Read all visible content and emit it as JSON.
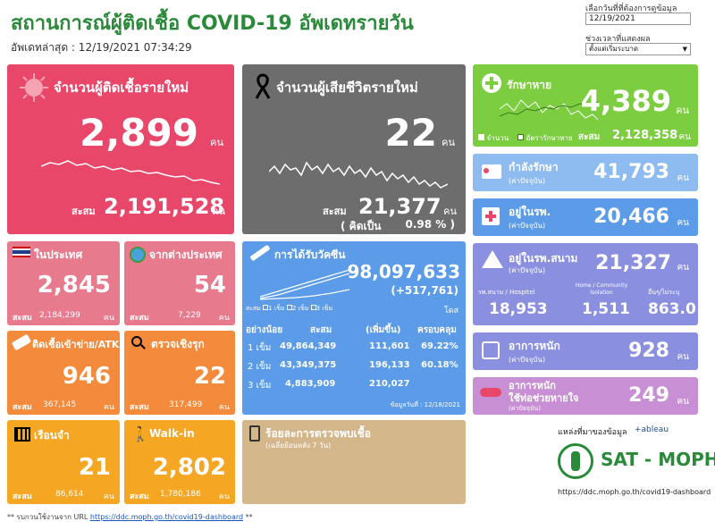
{
  "header": {
    "title": "สถานการณ์ผู้ติดเชื้อ COVID-19 อัพเดทรายวัน",
    "updated_label": "อัพเดทล่าสุด : 12/19/2021 07:34:29",
    "date_filter_label": "เลือกวันที่ที่ต้องการดูข้อมูล",
    "date_value": "12/19/2021",
    "period_label": "ช่วงเวลาที่แสดงผล",
    "period_value": "ตั้งแต่เริ่มระบาด"
  },
  "new_cases": {
    "title": "จำนวนผู้ติดเชื้อรายใหม่",
    "value": "2,899",
    "unit": "คน",
    "total_label": "สะสม",
    "total": "2,191,528",
    "total_unit": "คน"
  },
  "deaths": {
    "title": "จำนวนผู้เสียชีวิตรายใหม่",
    "value": "22",
    "unit": "คน",
    "total_label": "สะสม",
    "total": "21,377",
    "total_unit": "คน",
    "pct_label": "( คิดเป็น",
    "pct_value": "0.98 % )"
  },
  "recovered": {
    "title": "รักษาหาย",
    "value": "4,389",
    "unit": "คน",
    "legend1": "จำนวน",
    "legend2": "อัตรารักษาหาย",
    "total_label": "สะสม",
    "total": "2,128,358",
    "total_unit": "คน"
  },
  "treating": {
    "title": "กำลังรักษา",
    "sub": "(ค่าปัจจุบัน)",
    "value": "41,793",
    "unit": "คน"
  },
  "hospital": {
    "title": "อยู่ในรพ.",
    "sub": "(ค่าปัจจุบัน)",
    "value": "20,466",
    "unit": "คน"
  },
  "field_hospital": {
    "title": "อยู่ในรพ.สนาม",
    "sub": "(ค่าปัจจุบัน)",
    "value": "21,327",
    "unit": "คน",
    "col1_label": "รพ.สนาม / Hospitel",
    "col1_value": "18,953",
    "col2_label": "Home / Community Isolation",
    "col2_value": "1,511",
    "col3_label": "อื่นๆ/ไม่ระบุ",
    "col3_value": "863.0"
  },
  "severe": {
    "title": "อาการหนัก",
    "sub": "(ค่าปัจจุบัน)",
    "value": "928",
    "unit": "คน"
  },
  "ventilator": {
    "title1": "อาการหนัก",
    "title2": "ใช้ท่อช่วยหายใจ",
    "sub": "(ค่าปัจจุบัน)",
    "value": "249",
    "unit": "คน"
  },
  "domestic": {
    "title": "ในประเทศ",
    "value": "2,845",
    "total_label": "สะสม",
    "total": "2,184,299",
    "total_unit": "คน"
  },
  "imported": {
    "title": "จากต่างประเทศ",
    "value": "54",
    "total_label": "สะสม",
    "total": "7,229",
    "total_unit": "คน"
  },
  "atk": {
    "title": "ติดเชื้อเข้าข่าย/ATK",
    "value": "946",
    "total_label": "สะสม",
    "total": "367,145",
    "total_unit": "คน"
  },
  "proactive": {
    "title": "ตรวจเชิงรุก",
    "value": "22",
    "total_label": "สะสม",
    "total": "317,499",
    "total_unit": "คน"
  },
  "prison": {
    "title": "เรือนจำ",
    "value": "21",
    "total_label": "สะสม",
    "total": "86,614",
    "total_unit": "คน"
  },
  "walkin": {
    "title": "Walk-in",
    "value": "2,802",
    "total_label": "สะสม",
    "total": "1,780,186",
    "total_unit": "คน"
  },
  "vaccine": {
    "title": "การได้รับวัคซีน",
    "total": "98,097,633",
    "increase": "(+517,761)",
    "dose_unit": "โดส",
    "legend_prefix": "สะสม",
    "legend1": "1 เข็ม",
    "legend2": "2 เข็ม",
    "legend3": "3 เข็ม",
    "headers": [
      "อย่างน้อย",
      "สะสม",
      "(เพิ่มขึ้น)",
      "ครอบคลุม"
    ],
    "rows": [
      [
        "1 เข็ม",
        "49,864,349",
        "111,601",
        "69.22%"
      ],
      [
        "2 เข็ม",
        "43,349,375",
        "196,133",
        "60.18%"
      ],
      [
        "3 เข็ม",
        "4,883,909",
        "210,027",
        ""
      ]
    ],
    "data_date": "ข้อมูลวันที่ : 12/18/2021"
  },
  "positivity": {
    "title": "ร้อยละการตรวจพบเชื้อ",
    "sub": "(เฉลี่ยย้อนหลัง 7 วัน)"
  },
  "source": {
    "label": "แหล่งที่มาของข้อมูล",
    "tableau": "+ableau",
    "org": "SAT - MOPH",
    "url": "https://ddc.moph.go.th/covid19-dashboard"
  },
  "footer": {
    "text_prefix": "** รบกวนใช้งานจาก URL",
    "link": "https://ddc.moph.go.th/covid19-dashboard",
    "text_suffix": "**"
  },
  "colors": {
    "new_cases": "#e8476a",
    "deaths": "#6d6d6d",
    "recovered": "#7dcd40",
    "blue_light": "#8ebbf0",
    "blue": "#5b9be8",
    "purple": "#8a8fe0",
    "pink_purple": "#c98fd4",
    "red_light": "#e87a8e",
    "orange": "#f48a3c",
    "amber": "#f5a623",
    "tan": "#d4b68b",
    "title_green": "#2a8a3a"
  }
}
